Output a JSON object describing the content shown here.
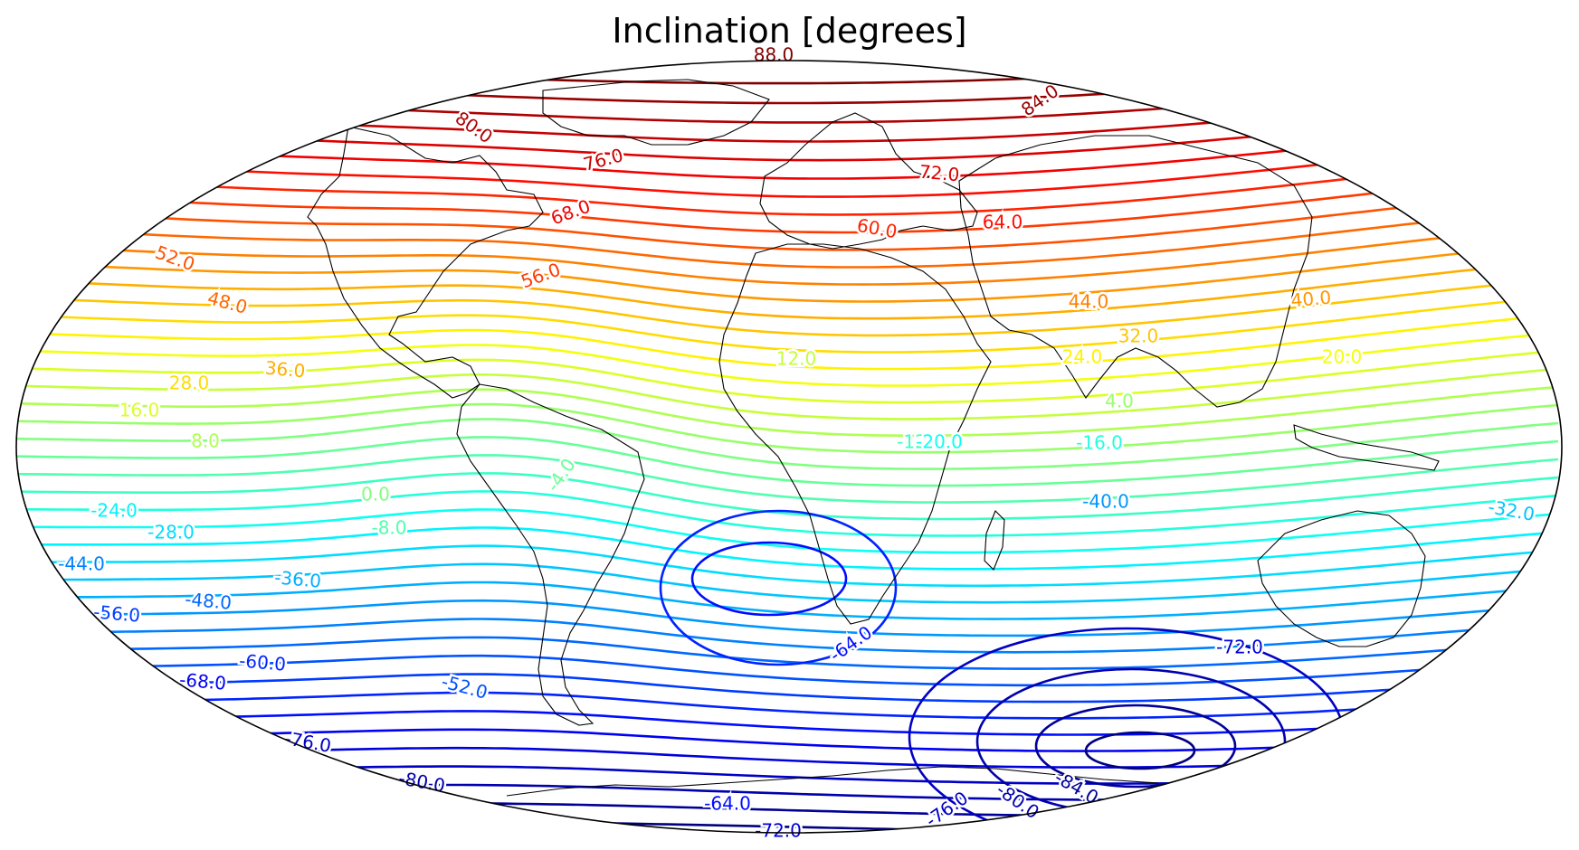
{
  "title": "Inclination [degrees]",
  "map": {
    "projection": "Hammer/Aitoff (global ellipse)",
    "colormap": "jet",
    "value_range": [
      -88,
      88
    ],
    "contour_interval": 4,
    "coastlines": true,
    "frame_color": "#000000"
  },
  "contour_labels": [
    {
      "text": "88.0",
      "value": 88
    },
    {
      "text": "84.0",
      "value": 84
    },
    {
      "text": "80.0",
      "value": 80
    },
    {
      "text": "76.0",
      "value": 76
    },
    {
      "text": "72.0",
      "value": 72
    },
    {
      "text": "68.0",
      "value": 68
    },
    {
      "text": "64.0",
      "value": 64
    },
    {
      "text": "60.0",
      "value": 60
    },
    {
      "text": "56.0",
      "value": 56
    },
    {
      "text": "52.0",
      "value": 52
    },
    {
      "text": "48.0",
      "value": 48
    },
    {
      "text": "44.0",
      "value": 44
    },
    {
      "text": "40.0",
      "value": 40
    },
    {
      "text": "36.0",
      "value": 36
    },
    {
      "text": "32.0",
      "value": 32
    },
    {
      "text": "28.0",
      "value": 28
    },
    {
      "text": "24.0",
      "value": 24
    },
    {
      "text": "20.0",
      "value": 20
    },
    {
      "text": "16.0",
      "value": 16
    },
    {
      "text": "12.0",
      "value": 12
    },
    {
      "text": "8.0",
      "value": 8
    },
    {
      "text": "4.0",
      "value": 4
    },
    {
      "text": "0.0",
      "value": 0
    },
    {
      "text": "-4.0",
      "value": -4
    },
    {
      "text": "-8.0",
      "value": -8
    },
    {
      "text": "-12.0",
      "value": -12
    },
    {
      "text": "-16.0",
      "value": -16
    },
    {
      "text": "-20.0",
      "value": -20
    },
    {
      "text": "-24.0",
      "value": -24
    },
    {
      "text": "-28.0",
      "value": -28
    },
    {
      "text": "-32.0",
      "value": -32
    },
    {
      "text": "-36.0",
      "value": -36
    },
    {
      "text": "-40.0",
      "value": -40
    },
    {
      "text": "-44.0",
      "value": -44
    },
    {
      "text": "-48.0",
      "value": -48
    },
    {
      "text": "-52.0",
      "value": -52
    },
    {
      "text": "-56.0",
      "value": -56
    },
    {
      "text": "-60.0",
      "value": -60
    },
    {
      "text": "-64.0",
      "value": -64
    },
    {
      "text": "-64.0",
      "value": -64
    },
    {
      "text": "-68.0",
      "value": -68
    },
    {
      "text": "-72.0",
      "value": -72
    },
    {
      "text": "-72.0",
      "value": -72
    },
    {
      "text": "-76.0",
      "value": -76
    },
    {
      "text": "-76.0",
      "value": -76
    },
    {
      "text": "-80.0",
      "value": -80
    },
    {
      "text": "-80.0",
      "value": -80
    },
    {
      "text": "-84.0",
      "value": -84
    }
  ]
}
